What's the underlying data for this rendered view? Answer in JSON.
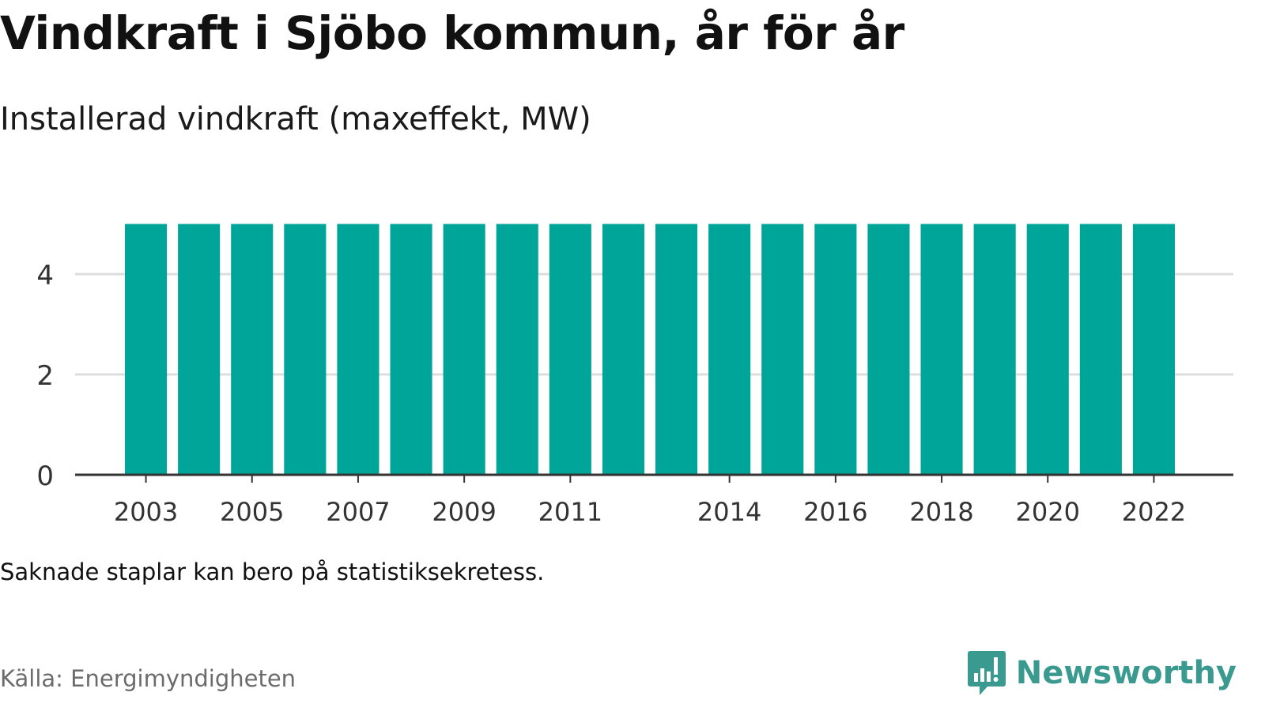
{
  "title": "Vindkraft i Sjöbo kommun, år för år",
  "subtitle": "Installerad vindkraft (maxeffekt, MW)",
  "note": "Saknade staplar kan bero på statistiksekretess.",
  "source": "Källa: Energimyndigheten",
  "brand": {
    "name": "Newsworthy",
    "color": "#3a9a8f",
    "icon": "chart-speech-bubble-icon"
  },
  "colors": {
    "bar": "#00a59a",
    "grid": "#dddddd",
    "axis": "#333333",
    "tick_text": "#333333"
  },
  "chart_data": {
    "type": "bar",
    "categories": [
      "2003",
      "2004",
      "2005",
      "2006",
      "2007",
      "2008",
      "2009",
      "2010",
      "2011",
      "2012",
      "2013",
      "2014",
      "2015",
      "2016",
      "2017",
      "2018",
      "2019",
      "2020",
      "2021",
      "2022"
    ],
    "values": [
      5,
      5,
      5,
      5,
      5,
      5,
      5,
      5,
      5,
      5,
      5,
      5,
      5,
      5,
      5,
      5,
      5,
      5,
      5,
      5
    ],
    "x_tick_labels": [
      "2003",
      "2005",
      "2007",
      "2009",
      "2011",
      "2014",
      "2016",
      "2018",
      "2020",
      "2022"
    ],
    "y_ticks": [
      0,
      2,
      4
    ],
    "ylim": [
      0,
      5
    ],
    "grid": true
  }
}
